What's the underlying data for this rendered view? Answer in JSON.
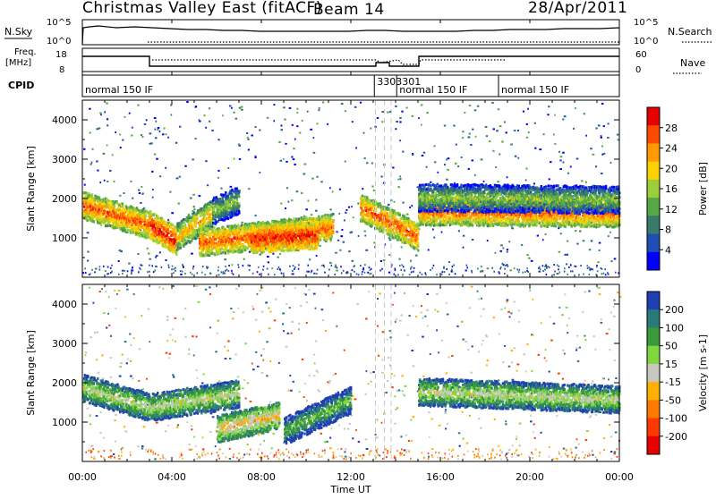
{
  "header": {
    "title": "Christmas Valley East (fitACF)",
    "beam": "Beam 14",
    "date": "28/Apr/2011"
  },
  "strip_labels": {
    "nsky": "N.Sky",
    "nsearch": "N.Search",
    "freq_top": "Freq.",
    "freq_unit": "[MHz]",
    "nave": "Nave",
    "cpid": "CPID",
    "nsky_ticks": [
      "10^5",
      "10^0"
    ],
    "nsearch_ticks": [
      "10^5",
      "10^0"
    ],
    "freq_ticks": [
      "18",
      "8"
    ],
    "nave_ticks": [
      "60",
      "0"
    ]
  },
  "cpid_labels": [
    {
      "text": "normal 150 IF",
      "t": 0.0
    },
    {
      "text": "3303301",
      "t": 13.05
    },
    {
      "text": "normal 150 IF",
      "t": 14.05
    },
    {
      "text": "normal 150 IF",
      "t": 18.6
    }
  ],
  "xaxis": {
    "label": "Time UT",
    "ticks": [
      "00:00",
      "04:00",
      "08:00",
      "12:00",
      "16:00",
      "20:00",
      "00:00"
    ]
  },
  "chart_data": [
    {
      "type": "heatmap",
      "name": "power-panel",
      "ylabel": "Slant Range [km]",
      "yticks": [
        "1000",
        "2000",
        "3000",
        "4000"
      ],
      "ylim": [
        0,
        4500
      ],
      "xlim": [
        0,
        24
      ],
      "colorbar": {
        "label": "Power [dB]",
        "ticks": [
          "4",
          "8",
          "12",
          "16",
          "20",
          "24",
          "28"
        ],
        "colors": [
          "#0000ff",
          "#1f4fb4",
          "#3a7a6a",
          "#55a845",
          "#9ccd3a",
          "#ffd000",
          "#ff9a00",
          "#ff4a00",
          "#e60000"
        ]
      },
      "bands": [
        {
          "t0": 0.0,
          "t1": 3.0,
          "r0": 1850,
          "r1": 1350,
          "level": 7
        },
        {
          "t0": 3.0,
          "t1": 4.2,
          "r0": 1350,
          "r1": 950,
          "level": 8
        },
        {
          "t0": 4.2,
          "t1": 5.8,
          "r0": 1050,
          "r1": 1650,
          "level": 6
        },
        {
          "t0": 5.8,
          "t1": 7.0,
          "r0": 1700,
          "r1": 2000,
          "level": 4
        },
        {
          "t0": 5.2,
          "t1": 11.2,
          "r0": 900,
          "r1": 1300,
          "level": 7
        },
        {
          "t0": 7.5,
          "t1": 10.5,
          "r0": 1000,
          "r1": 1100,
          "level": 8
        },
        {
          "t0": 12.4,
          "t1": 15.0,
          "r0": 1800,
          "r1": 1050,
          "level": 7
        },
        {
          "t0": 15.0,
          "t1": 24.0,
          "r0": 1700,
          "r1": 1650,
          "level": 7
        },
        {
          "t0": 15.0,
          "t1": 24.0,
          "r0": 2050,
          "r1": 2000,
          "level": 4
        }
      ]
    },
    {
      "type": "heatmap",
      "name": "velocity-panel",
      "ylabel": "Slant Range [km]",
      "yticks": [
        "1000",
        "2000",
        "3000",
        "4000"
      ],
      "ylim": [
        0,
        4500
      ],
      "xlim": [
        0,
        24
      ],
      "colorbar": {
        "label": "Velocity [m s-1]",
        "ticks": [
          "200",
          "100",
          "50",
          "15",
          "-15",
          "-50",
          "-100",
          "-200"
        ],
        "colors": [
          "#1f3fb4",
          "#2a7a7a",
          "#3a9a3a",
          "#7fd640",
          "#c8c8c0",
          "#ffb000",
          "#ff7a00",
          "#ff3a00",
          "#e60000"
        ]
      },
      "bands": [
        {
          "t0": 0.0,
          "t1": 3.0,
          "r0": 1900,
          "r1": 1400,
          "level": 4
        },
        {
          "t0": 3.0,
          "t1": 7.0,
          "r0": 1400,
          "r1": 1750,
          "level": 4
        },
        {
          "t0": 6.0,
          "t1": 8.8,
          "r0": 850,
          "r1": 1200,
          "level": 5
        },
        {
          "t0": 9.0,
          "t1": 12.0,
          "r0": 800,
          "r1": 1600,
          "level": 3
        },
        {
          "t0": 15.0,
          "t1": 24.0,
          "r0": 1800,
          "r1": 1600,
          "level": 4
        }
      ]
    }
  ]
}
